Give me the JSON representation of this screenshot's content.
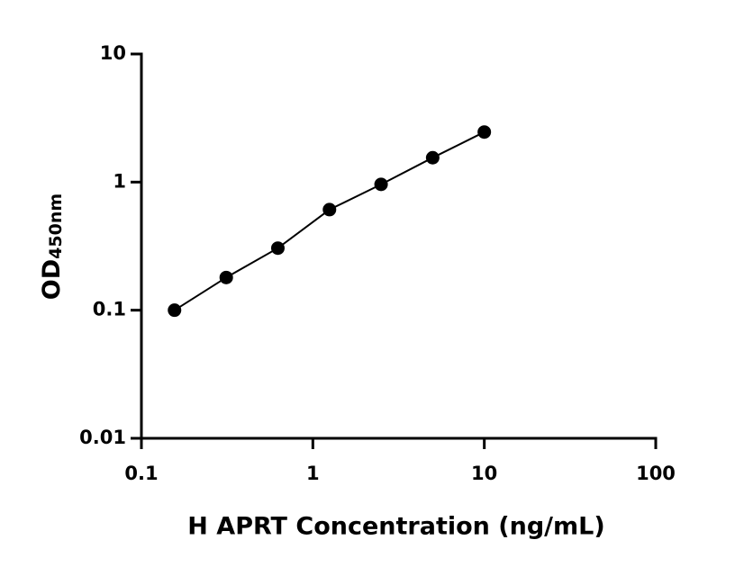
{
  "chart_data": {
    "type": "scatter",
    "x_label": "H APRT Concentration (ng/mL)",
    "y_label": "OD",
    "y_label_subscript": "450nm",
    "x": [
      0.156,
      0.3125,
      0.625,
      1.25,
      2.5,
      5,
      10
    ],
    "series": [
      {
        "color": "#000000",
        "values": [
          0.1,
          0.18,
          0.305,
          0.61,
          0.96,
          1.55,
          2.46
        ]
      }
    ],
    "x_log": true,
    "y_log": true,
    "xlim": [
      0.1,
      100
    ],
    "ylim": [
      0.01,
      10
    ],
    "xticks": [
      0.1,
      1,
      10,
      100
    ],
    "yticks": [
      0.01,
      0.1,
      1,
      10
    ]
  }
}
